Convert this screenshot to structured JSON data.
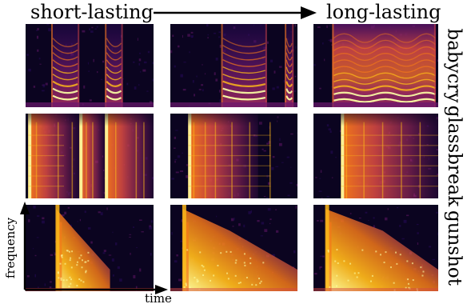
{
  "header": {
    "left": "short-lasting",
    "right": "long-lasting"
  },
  "rows": [
    {
      "label": "babycry"
    },
    {
      "label": "glassbreak"
    },
    {
      "label": "gunshot"
    }
  ],
  "axes": {
    "y_label": "frequency",
    "x_label": "time"
  },
  "colormap": {
    "stops": [
      "#0b0420",
      "#2a0a5e",
      "#6a176e",
      "#a52c60",
      "#d44842",
      "#f37819",
      "#fbb61a",
      "#fcffa4"
    ]
  },
  "panels": [
    {
      "id": "babycry-short",
      "row": 0,
      "col": 0,
      "type": "cry",
      "calls": [
        [
          0.2,
          0.42
        ],
        [
          0.62,
          0.76
        ]
      ],
      "overlay": 0
    },
    {
      "id": "babycry-mid",
      "row": 0,
      "col": 1,
      "type": "cry",
      "calls": [
        [
          0.4,
          0.76
        ],
        [
          0.9,
          0.97
        ]
      ],
      "overlay": 0
    },
    {
      "id": "babycry-long",
      "row": 0,
      "col": 2,
      "type": "cry",
      "calls": [
        [
          0.15,
          0.98
        ]
      ],
      "overlay": 1
    },
    {
      "id": "glassbreak-short",
      "row": 1,
      "col": 0,
      "type": "glass",
      "onsets": [
        0.02,
        0.42,
        0.62
      ],
      "decay": 0.18,
      "lines": [
        0.08,
        0.25,
        0.36,
        0.47,
        0.52,
        0.7,
        0.86,
        0.92
      ]
    },
    {
      "id": "glassbreak-mid",
      "row": 1,
      "col": 1,
      "type": "glass",
      "onsets": [
        0.14
      ],
      "decay": 0.55,
      "lines": [
        0.18,
        0.27,
        0.35,
        0.48,
        0.62,
        0.78
      ]
    },
    {
      "id": "glassbreak-long",
      "row": 1,
      "col": 2,
      "type": "glass",
      "onsets": [
        0.22
      ],
      "decay": 0.95,
      "lines": [
        0.26,
        0.4,
        0.55,
        0.7,
        0.85
      ]
    },
    {
      "id": "gunshot-short",
      "row": 2,
      "col": 0,
      "type": "gun",
      "onset": 0.24,
      "reach": 0.42
    },
    {
      "id": "gunshot-mid",
      "row": 2,
      "col": 1,
      "type": "gun",
      "onset": 0.1,
      "reach": 1.05
    },
    {
      "id": "gunshot-long",
      "row": 2,
      "col": 2,
      "type": "gun",
      "onset": 0.1,
      "reach": 1.3
    }
  ]
}
